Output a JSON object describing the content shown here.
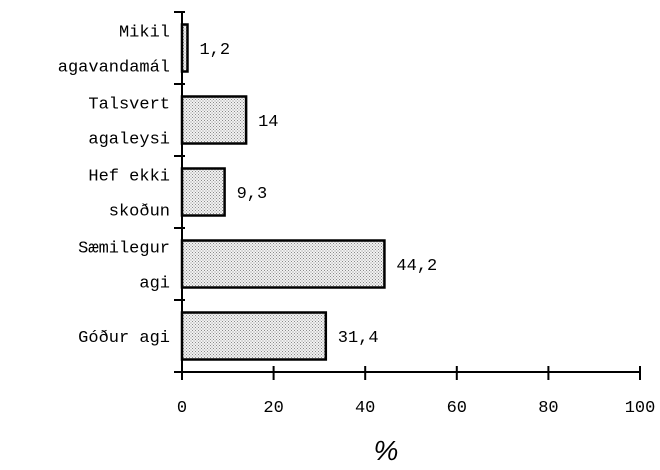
{
  "chart_data": {
    "type": "bar",
    "orientation": "horizontal",
    "categories": [
      [
        "Mikil",
        "agavandamál"
      ],
      [
        "Talsvert",
        "agaleysi"
      ],
      [
        "Hef ekki",
        "skoðun"
      ],
      [
        "Sæmilegur",
        "agi"
      ],
      [
        "Góður agi"
      ]
    ],
    "values": [
      1.2,
      14,
      9.3,
      44.2,
      31.4
    ],
    "value_labels": [
      "1,2",
      "14",
      "9,3",
      "44,2",
      "31,4"
    ],
    "xlabel": "%",
    "xlim": [
      0,
      100
    ],
    "xticks": [
      0,
      20,
      40,
      60,
      80,
      100
    ],
    "xtick_labels": [
      "0",
      "20",
      "40",
      "60",
      "80",
      "100"
    ],
    "grid": false,
    "bar_fill": "stippled light gray",
    "bar_color": "#dcdcdc",
    "bar_stroke": "#000000"
  }
}
